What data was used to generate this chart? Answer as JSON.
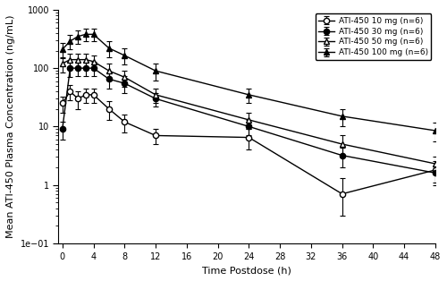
{
  "title": "",
  "xlabel": "Time Postdose (h)",
  "ylabel": "Mean ATI-450 Plasma Concentration (ng/mL)",
  "ylim": [
    0.1,
    1000
  ],
  "xlim": [
    -0.5,
    48
  ],
  "xticks": [
    0,
    4,
    8,
    12,
    16,
    20,
    24,
    28,
    32,
    36,
    40,
    44,
    48
  ],
  "yticks": [
    0.1,
    1,
    10,
    100,
    1000
  ],
  "series": [
    {
      "label": "ATI-450 10 mg (n=6)",
      "marker": "o",
      "fillstyle": "none",
      "color": "black",
      "time": [
        0,
        1,
        2,
        3,
        4,
        6,
        8,
        12,
        24,
        36,
        48
      ],
      "conc": [
        25,
        40,
        30,
        35,
        35,
        20,
        12,
        7,
        6.5,
        0.7,
        1.8
      ],
      "err_lo": [
        8,
        12,
        10,
        10,
        10,
        7,
        4,
        2,
        2.5,
        0.4,
        0.8
      ],
      "err_hi": [
        8,
        12,
        10,
        10,
        10,
        7,
        4,
        2,
        2.5,
        0.6,
        0.8
      ]
    },
    {
      "label": "ATI-450 30 mg (n=6)",
      "marker": "o",
      "fillstyle": "full",
      "color": "black",
      "time": [
        0,
        1,
        2,
        3,
        4,
        6,
        8,
        12,
        24,
        36,
        48
      ],
      "conc": [
        9,
        100,
        100,
        100,
        100,
        65,
        55,
        30,
        10,
        3.2,
        1.6
      ],
      "err_lo": [
        3,
        30,
        28,
        28,
        28,
        20,
        18,
        8,
        3,
        1.2,
        0.5
      ],
      "err_hi": [
        3,
        30,
        28,
        28,
        28,
        20,
        18,
        8,
        3,
        1.2,
        0.5
      ]
    },
    {
      "label": "ATI-450 50 mg (n=6)",
      "marker": "^",
      "fillstyle": "none",
      "color": "black",
      "time": [
        0,
        1,
        2,
        3,
        4,
        6,
        8,
        12,
        24,
        36,
        48
      ],
      "conc": [
        120,
        140,
        140,
        140,
        130,
        90,
        70,
        35,
        13,
        5,
        2.3
      ],
      "err_lo": [
        35,
        40,
        40,
        40,
        35,
        28,
        22,
        10,
        4,
        2,
        0.8
      ],
      "err_hi": [
        35,
        40,
        40,
        40,
        35,
        28,
        22,
        10,
        4,
        2,
        0.8
      ]
    },
    {
      "label": "ATI-450 100 mg (n=6)",
      "marker": "^",
      "fillstyle": "full",
      "color": "black",
      "time": [
        0,
        1,
        2,
        3,
        4,
        6,
        8,
        12,
        24,
        36,
        48
      ],
      "conc": [
        210,
        290,
        350,
        380,
        380,
        220,
        165,
        90,
        35,
        15,
        8.5
      ],
      "err_lo": [
        60,
        80,
        90,
        95,
        95,
        65,
        50,
        28,
        10,
        5,
        3
      ],
      "err_hi": [
        60,
        80,
        90,
        95,
        95,
        65,
        50,
        28,
        10,
        5,
        3
      ]
    }
  ],
  "background_color": "#ffffff",
  "legend_loc": "upper right",
  "fontsize": 8
}
